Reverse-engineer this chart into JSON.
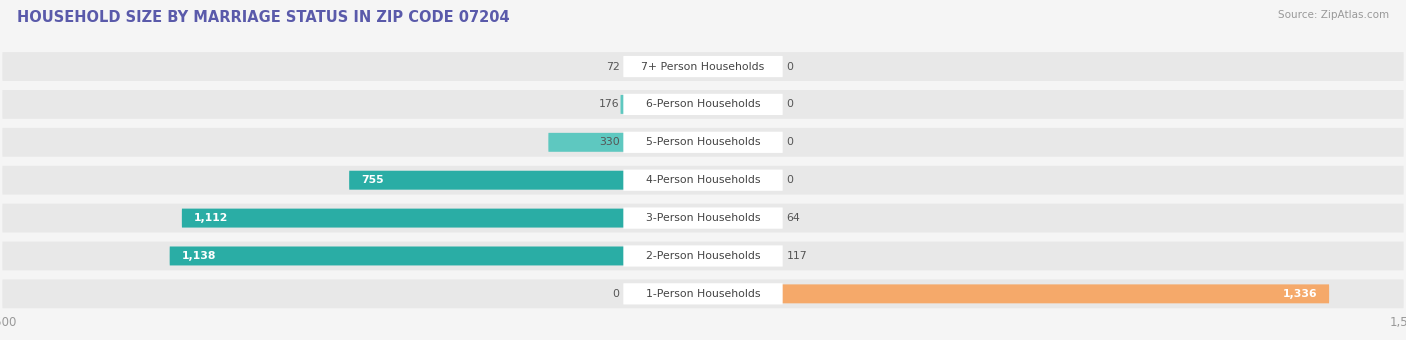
{
  "title": "HOUSEHOLD SIZE BY MARRIAGE STATUS IN ZIP CODE 07204",
  "source": "Source: ZipAtlas.com",
  "categories": [
    "7+ Person Households",
    "6-Person Households",
    "5-Person Households",
    "4-Person Households",
    "3-Person Households",
    "2-Person Households",
    "1-Person Households"
  ],
  "family_values": [
    72,
    176,
    330,
    755,
    1112,
    1138,
    0
  ],
  "nonfamily_values": [
    0,
    0,
    0,
    0,
    64,
    117,
    1336
  ],
  "family_color_small": "#5ec8c0",
  "family_color_large": "#2aada5",
  "nonfamily_color": "#f5a96a",
  "xlim": 1500,
  "bg_color": "#f5f5f5",
  "row_bg_color": "#e8e8e8",
  "label_bg_color": "#ffffff",
  "title_color": "#5a5aaa",
  "source_color": "#999999",
  "dark_label_color": "#555555",
  "light_label_color": "#ffffff"
}
